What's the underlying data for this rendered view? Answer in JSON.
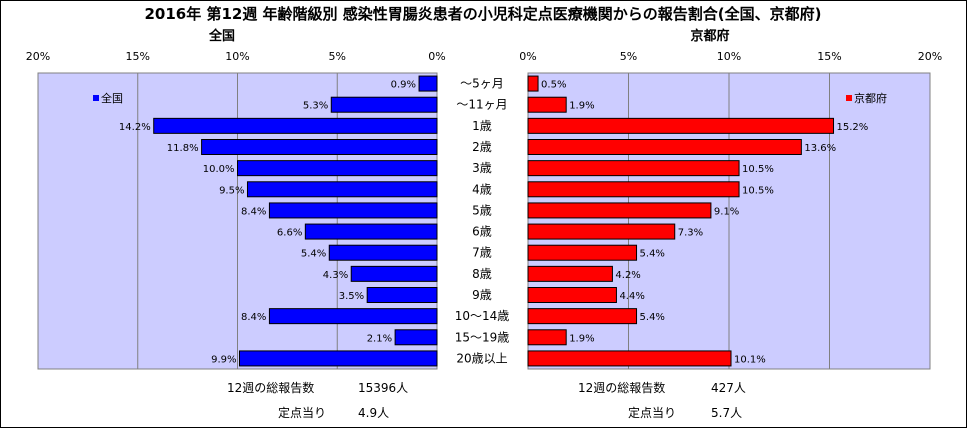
{
  "title": "2016年 第12週 年齢階級別 感染性胃腸炎患者の小児科定点医療機関からの報告割合(全国、京都府)",
  "categories": [
    "～5ヶ月",
    "～11ヶ月",
    "1歳",
    "2歳",
    "3歳",
    "4歳",
    "5歳",
    "6歳",
    "7歳",
    "8歳",
    "9歳",
    "10～14歳",
    "15～19歳",
    "20歳以上"
  ],
  "panels": {
    "left": {
      "subtitle": "全国",
      "legend": "全国",
      "color": "#0000ff",
      "axis_ticks": [
        "20%",
        "15%",
        "10%",
        "5%",
        "0%"
      ],
      "footer_total_label": "12週の総報告数",
      "footer_total_value": "15396人",
      "footer_avg_label": "定点当り",
      "footer_avg_value": "4.9人"
    },
    "right": {
      "subtitle": "京都府",
      "legend": "京都府",
      "color": "#ff0000",
      "axis_ticks": [
        "0%",
        "5%",
        "10%",
        "15%",
        "20%"
      ],
      "footer_total_label": "12週の総報告数",
      "footer_total_value": "427人",
      "footer_avg_label": "定点当り",
      "footer_avg_value": "5.7人"
    }
  },
  "chart_data": [
    {
      "type": "bar",
      "orientation": "horizontal",
      "direction": "reversed",
      "subtitle": "全国",
      "categories": [
        "～5ヶ月",
        "～11ヶ月",
        "1歳",
        "2歳",
        "3歳",
        "4歳",
        "5歳",
        "6歳",
        "7歳",
        "8歳",
        "9歳",
        "10～14歳",
        "15～19歳",
        "20歳以上"
      ],
      "series": [
        {
          "name": "全国",
          "color": "#0000ff",
          "values": [
            0.9,
            5.3,
            14.2,
            11.8,
            10.0,
            9.5,
            8.4,
            6.6,
            5.4,
            4.3,
            3.5,
            8.4,
            2.1,
            9.9
          ],
          "labels": [
            "0.9%",
            "5.3%",
            "14.2%",
            "11.8%",
            "10.0%",
            "9.5%",
            "8.4%",
            "6.6%",
            "5.4%",
            "4.3%",
            "3.5%",
            "8.4%",
            "2.1%",
            "9.9%"
          ]
        }
      ],
      "xlim": [
        0,
        20
      ],
      "grid": true
    },
    {
      "type": "bar",
      "orientation": "horizontal",
      "subtitle": "京都府",
      "categories": [
        "～5ヶ月",
        "～11ヶ月",
        "1歳",
        "2歳",
        "3歳",
        "4歳",
        "5歳",
        "6歳",
        "7歳",
        "8歳",
        "9歳",
        "10～14歳",
        "15～19歳",
        "20歳以上"
      ],
      "series": [
        {
          "name": "京都府",
          "color": "#ff0000",
          "values": [
            0.5,
            1.9,
            15.2,
            13.6,
            10.5,
            10.5,
            9.1,
            7.3,
            5.4,
            4.2,
            4.4,
            5.4,
            1.9,
            10.1
          ],
          "labels": [
            "0.5%",
            "1.9%",
            "15.2%",
            "13.6%",
            "10.5%",
            "10.5%",
            "9.1%",
            "7.3%",
            "5.4%",
            "4.2%",
            "4.4%",
            "5.4%",
            "1.9%",
            "10.1%"
          ]
        }
      ],
      "xlim": [
        0,
        20
      ],
      "grid": true
    }
  ]
}
